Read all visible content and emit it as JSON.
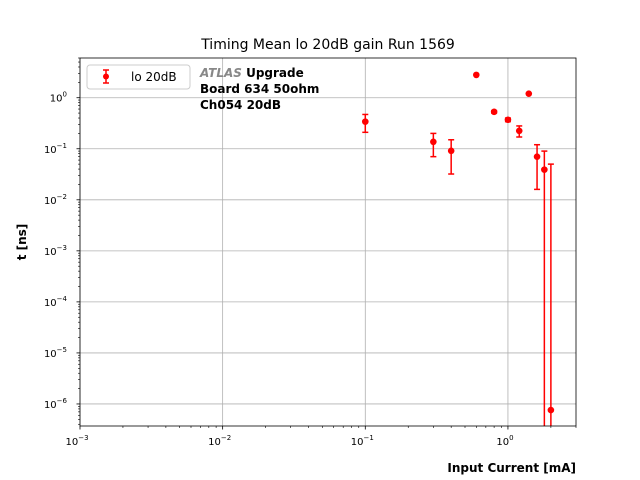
{
  "chart_data": {
    "type": "scatter",
    "title": "Timing Mean lo 20dB gain Run 1569",
    "xlabel": "Input Current [mA]",
    "ylabel": "t [ns]",
    "xscale": "log",
    "yscale": "log",
    "xlim": [
      0.001,
      3.0
    ],
    "ylim": [
      3.7e-07,
      6.0
    ],
    "grid": true,
    "x_ticks": [
      {
        "base": "10",
        "exp": "−3",
        "v": 0.001
      },
      {
        "base": "10",
        "exp": "−2",
        "v": 0.01
      },
      {
        "base": "10",
        "exp": "−1",
        "v": 0.1
      },
      {
        "base": "10",
        "exp": "0",
        "v": 1
      }
    ],
    "y_ticks": [
      {
        "base": "10",
        "exp": "−6",
        "v": 1e-06
      },
      {
        "base": "10",
        "exp": "−5",
        "v": 1e-05
      },
      {
        "base": "10",
        "exp": "−4",
        "v": 0.0001
      },
      {
        "base": "10",
        "exp": "−3",
        "v": 0.001
      },
      {
        "base": "10",
        "exp": "−2",
        "v": 0.01
      },
      {
        "base": "10",
        "exp": "−1",
        "v": 0.1
      },
      {
        "base": "10",
        "exp": "0",
        "v": 1
      }
    ],
    "legend": {
      "placement": "top-left",
      "entries": [
        "lo 20dB"
      ]
    },
    "annotation": {
      "italic": "ATLAS",
      "line1": "Upgrade",
      "line2": "Board 634 50ohm",
      "line3": "Ch054 20dB"
    },
    "color": "#ff0000",
    "series": [
      {
        "name": "lo 20dB",
        "points": [
          {
            "x": 0.1,
            "y": 0.34,
            "lo": 0.21,
            "hi": 0.47
          },
          {
            "x": 0.3,
            "y": 0.137,
            "lo": 0.07,
            "hi": 0.2
          },
          {
            "x": 0.4,
            "y": 0.091,
            "lo": 0.032,
            "hi": 0.15
          },
          {
            "x": 0.6,
            "y": 2.8,
            "lo": 2.8,
            "hi": 2.8
          },
          {
            "x": 0.8,
            "y": 0.53,
            "lo": 0.5,
            "hi": 0.56
          },
          {
            "x": 1.0,
            "y": 0.37,
            "lo": 0.34,
            "hi": 0.4
          },
          {
            "x": 1.2,
            "y": 0.225,
            "lo": 0.17,
            "hi": 0.28
          },
          {
            "x": 1.4,
            "y": 1.2,
            "lo": 1.2,
            "hi": 1.2
          },
          {
            "x": 1.6,
            "y": 0.07,
            "lo": 0.016,
            "hi": 0.12
          },
          {
            "x": 1.8,
            "y": 0.039,
            "lo": 1e-09,
            "hi": 0.09
          },
          {
            "x": 2.0,
            "y": 7.6e-07,
            "lo": 1e-09,
            "hi": 0.05
          }
        ]
      }
    ]
  }
}
